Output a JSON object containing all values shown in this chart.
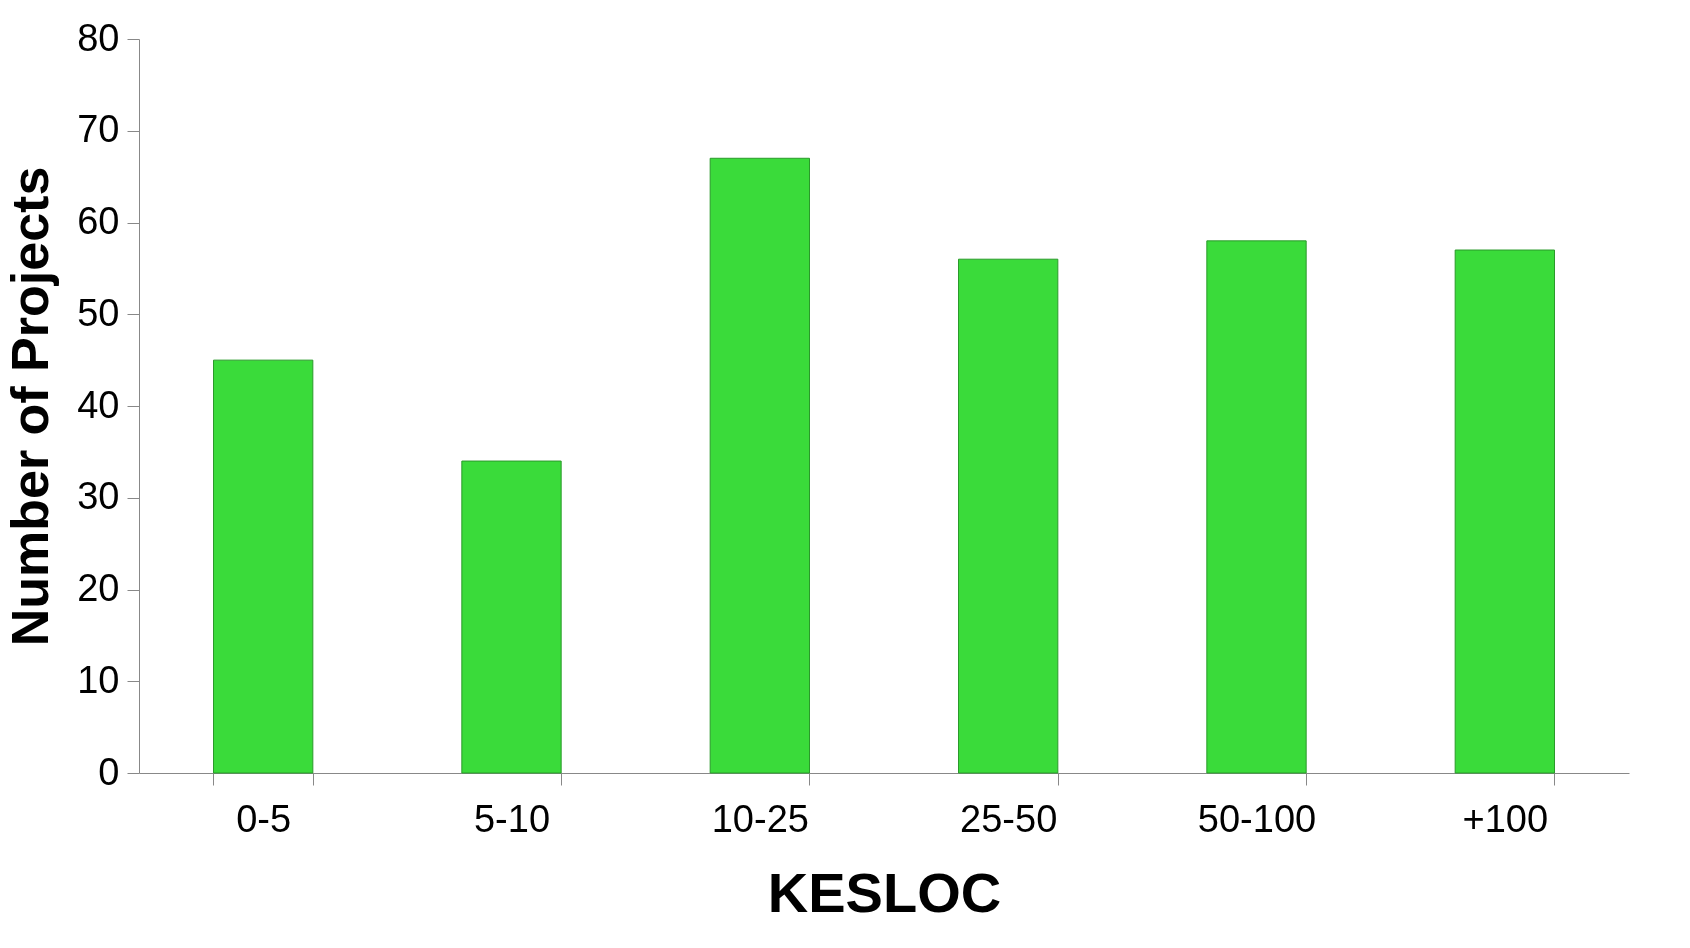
{
  "chart_data": {
    "type": "bar",
    "xlabel": "KESLOC",
    "ylabel": "Number of Projects",
    "categories": [
      "0-5",
      "5-10",
      "10-25",
      "25-50",
      "50-100",
      "+100"
    ],
    "values": [
      45,
      34,
      67,
      56,
      58,
      57
    ],
    "color": "#3adb3a",
    "ylim": [
      0,
      80
    ],
    "yticks": [
      0,
      10,
      20,
      30,
      40,
      50,
      60,
      70,
      80
    ],
    "grid": false
  }
}
